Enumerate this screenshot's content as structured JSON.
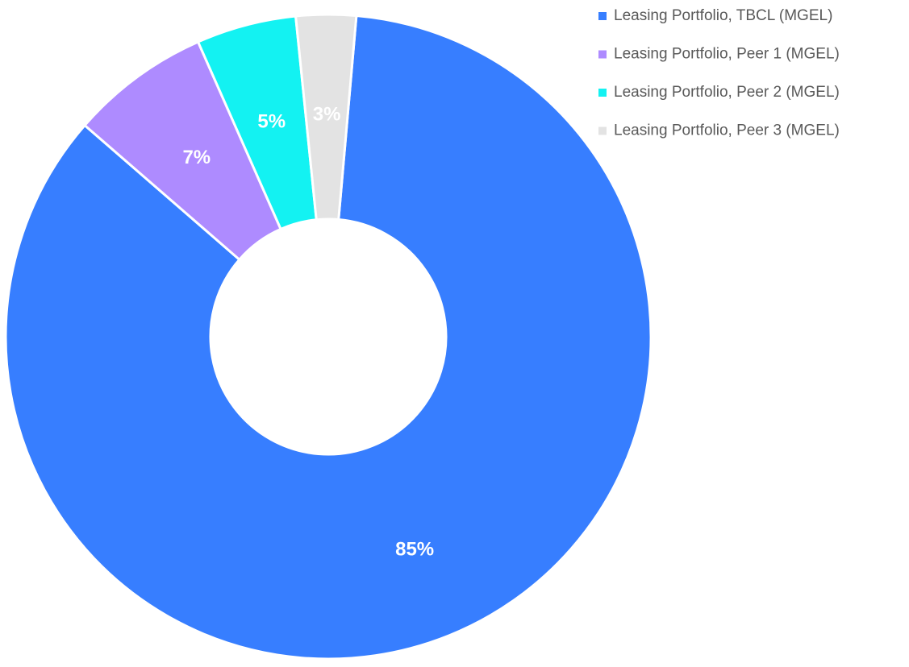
{
  "chart_data": {
    "type": "donut",
    "categories": [
      "Leasing Portfolio, TBCL (MGEL)",
      "Leasing Portfolio, Peer 1 (MGEL)",
      "Leasing Portfolio, Peer 2 (MGEL)",
      "Leasing Portfolio, Peer 3 (MGEL)"
    ],
    "values": [
      85,
      7,
      5,
      3
    ],
    "value_labels": [
      "85%",
      "7%",
      "5%",
      "3%"
    ],
    "colors": [
      "#377eff",
      "#ae8bff",
      "#13f2f2",
      "#e3e3e3"
    ],
    "legend": "top-right"
  }
}
